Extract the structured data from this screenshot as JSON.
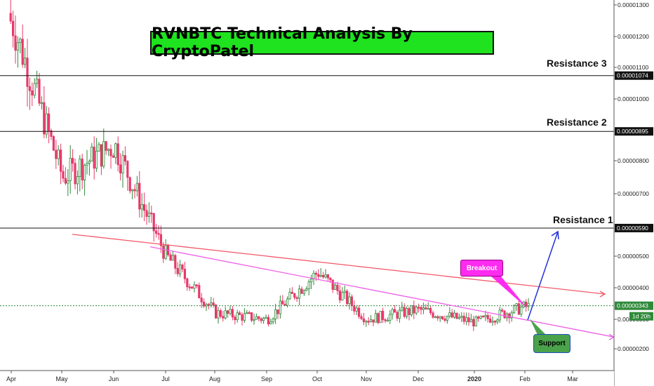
{
  "title": "RVNBTC Technical Analysis By CryptoPatel",
  "annotations": {
    "resistance_1": "Resistance 1",
    "resistance_2": "Resistance 2",
    "resistance_3": "Resistance 3",
    "breakout": "Breakout",
    "support": "Support",
    "countdown": "1d 20h"
  },
  "colors": {
    "up_candle": "#2f8a3a",
    "down_candle": "#e8386b",
    "trendline_red": "#f25a6b",
    "trendline_pink": "#ef5fe6",
    "projection_arrow": "#2430d8",
    "title_bg": "#1ee31e",
    "current_price_bg": "#2f8a3a"
  },
  "chart_data": {
    "type": "candlestick",
    "title": "RVNBTC Technical Analysis By CryptoPatel",
    "x_tick_labels": [
      "Apr",
      "May",
      "Jun",
      "Jul",
      "Aug",
      "Sep",
      "Oct",
      "Nov",
      "Dec",
      "2020",
      "Feb",
      "Mar"
    ],
    "y_tick_labels": [
      "0.00001300",
      "0.00001200",
      "0.00001100",
      "0.00001000",
      "0.00000800",
      "0.00000700",
      "0.00000500",
      "0.00000400",
      "0.00000300",
      "0.00000200"
    ],
    "ylim": [
      1.5e-06,
      1.32e-05
    ],
    "levels": [
      {
        "name": "Resistance 3",
        "value": 1.074e-05,
        "label": "0.00001074"
      },
      {
        "name": "Resistance 2",
        "value": 8.95e-06,
        "label": "0.00000895"
      },
      {
        "name": "Resistance 1",
        "value": 5.9e-06,
        "label": "0.00000590"
      }
    ],
    "current_price": {
      "value": 3.43e-06,
      "label": "0.00000343"
    },
    "price_series": {
      "months": [
        "Apr",
        "May",
        "Jun",
        "Jul",
        "Aug",
        "Sep",
        "Oct",
        "Nov",
        "Dec",
        "Jan",
        "Feb"
      ],
      "approx_close": [
        1.25e-05,
        7.5e-06,
        8.5e-06,
        5e-06,
        3.2e-06,
        3e-06,
        4.5e-06,
        3e-06,
        3.3e-06,
        2.9e-06,
        3.4e-06
      ]
    },
    "trendlines": [
      {
        "name": "red",
        "from": [
          "May",
          5.7e-06
        ],
        "to": [
          "Mar",
          3.8e-06
        ]
      },
      {
        "name": "pink",
        "from": [
          "Jul",
          5.3e-06
        ],
        "to": [
          "Mar",
          2.4e-06
        ]
      }
    ],
    "grid": false
  }
}
